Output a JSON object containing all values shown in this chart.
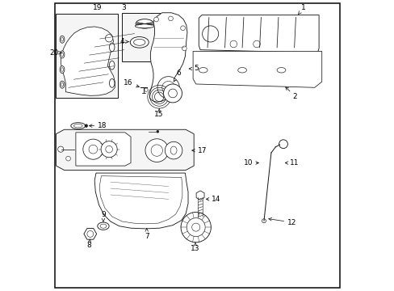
{
  "background_color": "#ffffff",
  "line_color": "#1a1a1a",
  "text_color": "#000000",
  "figsize": [
    4.89,
    3.6
  ],
  "dpi": 100,
  "border": [
    0.01,
    0.01,
    0.98,
    0.98
  ],
  "labels": {
    "1": [
      0.84,
      0.955,
      0.855,
      0.93
    ],
    "2": [
      0.82,
      0.62,
      0.79,
      0.65
    ],
    "3": [
      0.31,
      0.95,
      0.345,
      0.925
    ],
    "4": [
      0.285,
      0.87,
      0.33,
      0.87
    ],
    "5": [
      0.48,
      0.765,
      0.51,
      0.765
    ],
    "6": [
      0.435,
      0.74,
      0.435,
      0.72
    ],
    "7": [
      0.33,
      0.175,
      0.33,
      0.2
    ],
    "8": [
      0.115,
      0.145,
      0.115,
      0.17
    ],
    "9": [
      0.17,
      0.24,
      0.175,
      0.215
    ],
    "10": [
      0.69,
      0.44,
      0.71,
      0.44
    ],
    "11": [
      0.81,
      0.44,
      0.79,
      0.44
    ],
    "12": [
      0.79,
      0.23,
      0.77,
      0.24
    ],
    "13": [
      0.495,
      0.165,
      0.495,
      0.19
    ],
    "14": [
      0.545,
      0.31,
      0.52,
      0.31
    ],
    "15": [
      0.385,
      0.63,
      0.385,
      0.655
    ],
    "16": [
      0.28,
      0.71,
      0.305,
      0.695
    ],
    "17": [
      0.475,
      0.43,
      0.45,
      0.43
    ],
    "18": [
      0.145,
      0.565,
      0.12,
      0.565
    ],
    "19": [
      0.15,
      0.955,
      0.135,
      0.93
    ],
    "20": [
      0.03,
      0.83,
      0.06,
      0.83
    ]
  }
}
